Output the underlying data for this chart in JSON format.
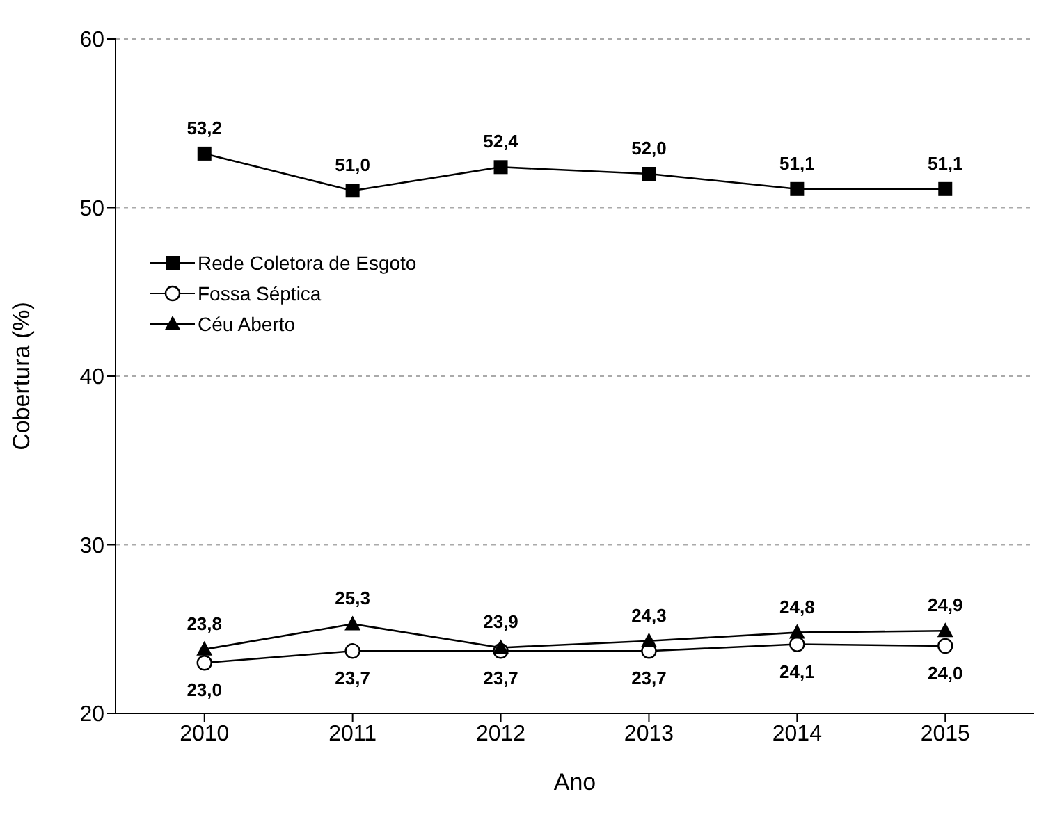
{
  "chart_data": {
    "type": "line",
    "xlabel": "Ano",
    "ylabel": "Cobertura (%)",
    "categories": [
      "2010",
      "2011",
      "2012",
      "2013",
      "2014",
      "2015"
    ],
    "series": [
      {
        "name": "Rede Coletora de Esgoto",
        "color": "#000000",
        "marker": "square",
        "values": [
          53.2,
          51.0,
          52.4,
          52.0,
          51.1,
          51.1
        ],
        "value_labels": [
          "53,2",
          "51,0",
          "52,4",
          "52,0",
          "51,1",
          "51,1"
        ]
      },
      {
        "name": "Fossa Séptica",
        "color": "#000000",
        "marker": "circle",
        "values": [
          23.0,
          23.7,
          23.7,
          23.7,
          24.1,
          24.0
        ],
        "value_labels": [
          "23,0",
          "23,7",
          "23,7",
          "23,7",
          "24,1",
          "24,0"
        ]
      },
      {
        "name": "Céu Aberto",
        "color": "#000000",
        "marker": "triangle",
        "values": [
          23.8,
          25.3,
          23.9,
          24.3,
          24.8,
          24.9
        ],
        "value_labels": [
          "23,8",
          "25,3",
          "23,9",
          "24,3",
          "24,8",
          "24,9"
        ]
      }
    ],
    "ylim": [
      20,
      60
    ],
    "yticks": [
      20,
      30,
      40,
      50,
      60
    ],
    "grid": "y",
    "legend": "top left",
    "line_style": "solid"
  }
}
